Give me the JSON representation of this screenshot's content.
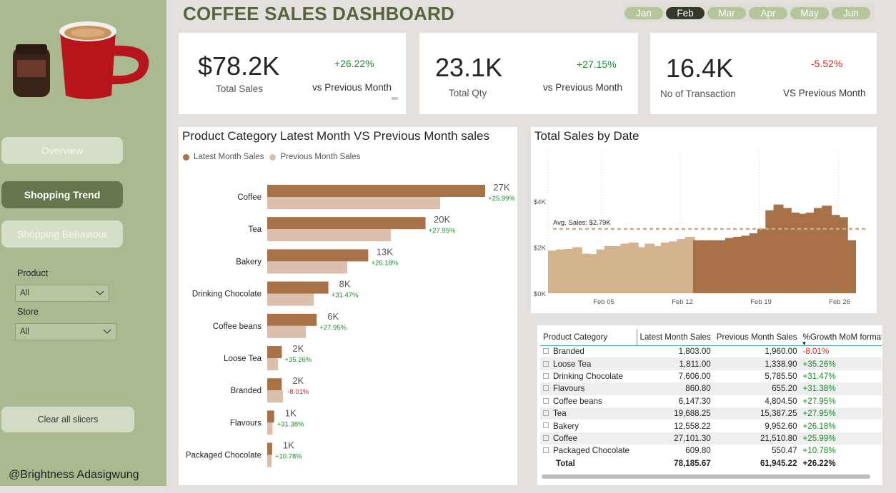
{
  "header": {
    "title": "COFFEE SALES DASHBOARD"
  },
  "months": [
    {
      "label": "Jan",
      "selected": false
    },
    {
      "label": "Feb",
      "selected": true
    },
    {
      "label": "Mar",
      "selected": false
    },
    {
      "label": "Apr",
      "selected": false
    },
    {
      "label": "May",
      "selected": false
    },
    {
      "label": "Jun",
      "selected": false
    }
  ],
  "nav": {
    "overview": "Overview",
    "shopping_trend": "Shopping Trend",
    "shopping_behaviour": "Shopping Behaviour"
  },
  "slicers": {
    "product_label": "Product",
    "product_value": "All",
    "store_label": "Store",
    "store_value": "All",
    "clear": "Clear all slicers"
  },
  "credit": "@Brightness Adasigwung",
  "kpis": [
    {
      "value": "$78.2K",
      "label": "Total Sales",
      "change": "+26.22%",
      "vs": "vs Previous Month"
    },
    {
      "value": "23.1K",
      "label": "Total Qty",
      "change": "+27.15%",
      "vs": "vs Previous Month"
    },
    {
      "value": "16.4K",
      "label": "No of Transaction",
      "change": "-5.52%",
      "vs": "VS Previous Month"
    }
  ],
  "colors": {
    "latest": "#a87148",
    "previous": "#dbbfad",
    "daily_light": "#d4b48e",
    "daily_dark": "#a87148",
    "positive": "#1a8a2a",
    "negative": "#d9261c",
    "accent": "#56653c"
  },
  "chart_data": [
    {
      "type": "bar",
      "title": "Product Category Latest Month VS Previous Month sales",
      "orientation": "horizontal",
      "legend": [
        "Latest Month Sales",
        "Previous Month Sales"
      ],
      "legend_position": "top-left",
      "categories": [
        "Coffee",
        "Tea",
        "Bakery",
        "Drinking Chocolate",
        "Coffee beans",
        "Loose Tea",
        "Branded",
        "Flavours",
        "Packaged Chocolate"
      ],
      "series": [
        {
          "name": "Latest Month Sales",
          "values": [
            27101.3,
            19688.25,
            12558.22,
            7606.0,
            6147.3,
            1811.0,
            1803.0,
            860.8,
            609.8
          ]
        },
        {
          "name": "Previous Month Sales",
          "values": [
            21510.8,
            15387.25,
            9952.6,
            5785.5,
            4804.5,
            1338.9,
            1960.0,
            655.2,
            550.47
          ]
        }
      ],
      "data_labels": [
        "27K",
        "20K",
        "13K",
        "8K",
        "6K",
        "2K",
        "2K",
        "1K",
        "1K"
      ],
      "growth_labels": [
        "+25.99%",
        "+27.95%",
        "+26.18%",
        "+31.47%",
        "+27.95%",
        "+35.26%",
        "-8.01%",
        "+31.38%",
        "+10.78%"
      ],
      "grid": false
    },
    {
      "type": "bar",
      "title": "Total Sales by Date",
      "x_ticks": [
        "Feb 05",
        "Feb 12",
        "Feb 19",
        "Feb 26"
      ],
      "y_ticks": [
        "$0K",
        "$2K",
        "$4K"
      ],
      "ylim": [
        0,
        4800
      ],
      "values": [
        1850,
        1900,
        1920,
        2000,
        1720,
        1700,
        1900,
        2050,
        2050,
        2150,
        2200,
        2000,
        2150,
        2050,
        2200,
        2250,
        2350,
        2450,
        2300,
        2300,
        2300,
        2300,
        2400,
        2450,
        2500,
        2600,
        2800,
        3600,
        3850,
        3700,
        3500,
        3450,
        3500,
        3700,
        3800,
        3400,
        3300,
        2300
      ],
      "highlight_from_index": 18,
      "reference_line": {
        "label": "Avg. Sales: $2.79K",
        "value": 2790
      },
      "grid": false
    }
  ],
  "table": {
    "headers": [
      "Product Category",
      "Latest Month Sales",
      "Previous Month Sales",
      "%Growth MoM format"
    ],
    "rows": [
      {
        "category": "Branded",
        "latest": "1,803.00",
        "previous": "1,960.00",
        "growth": "-8.01%",
        "negative": true
      },
      {
        "category": "Loose Tea",
        "latest": "1,811.00",
        "previous": "1,338.90",
        "growth": "+35.26%",
        "negative": false
      },
      {
        "category": "Drinking Chocolate",
        "latest": "7,606.00",
        "previous": "5,785.50",
        "growth": "+31.47%",
        "negative": false
      },
      {
        "category": "Flavours",
        "latest": "860.80",
        "previous": "655.20",
        "growth": "+31.38%",
        "negative": false
      },
      {
        "category": "Coffee beans",
        "latest": "6,147.30",
        "previous": "4,804.50",
        "growth": "+27.95%",
        "negative": false
      },
      {
        "category": "Tea",
        "latest": "19,688.25",
        "previous": "15,387.25",
        "growth": "+27.95%",
        "negative": false
      },
      {
        "category": "Bakery",
        "latest": "12,558.22",
        "previous": "9,952.60",
        "growth": "+26.18%",
        "negative": false
      },
      {
        "category": "Coffee",
        "latest": "27,101.30",
        "previous": "21,510.80",
        "growth": "+25.99%",
        "negative": false
      },
      {
        "category": "Packaged Chocolate",
        "latest": "609.80",
        "previous": "550.47",
        "growth": "+10.78%",
        "negative": false
      }
    ],
    "total": {
      "label": "Total",
      "latest": "78,185.67",
      "previous": "61,945.22",
      "growth": "+26.22%"
    }
  }
}
